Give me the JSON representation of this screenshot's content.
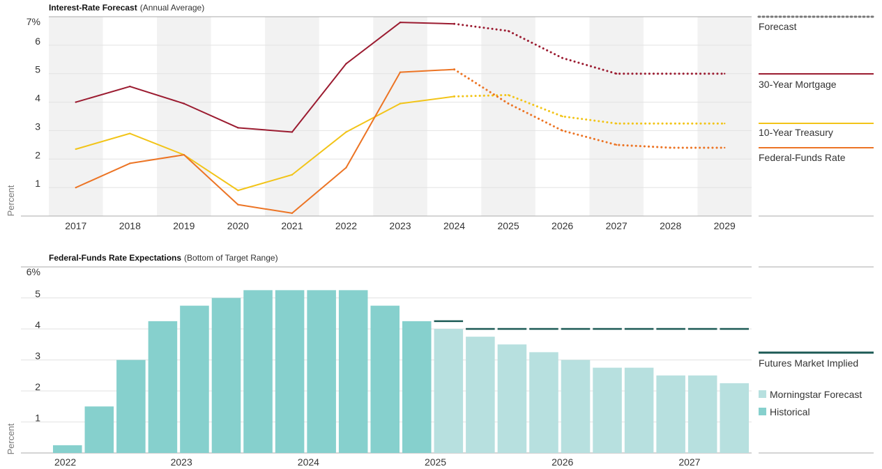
{
  "colors": {
    "mortgage": "#9b1b30",
    "treasury": "#f2c418",
    "fedfunds": "#ec7424",
    "forecast_dots": "#777777",
    "hist_bar": "#86d0cd",
    "forecast_bar": "#b7e0df",
    "futures": "#1c5a55",
    "band": "#f2f2f2",
    "grid": "#e2e2e2",
    "axis": "#aaaaaa"
  },
  "chart_data": [
    {
      "type": "line",
      "title": "Interest-Rate Forecast",
      "subtitle": "(Annual Average)",
      "ylabel": "Percent",
      "ylim": [
        0,
        7
      ],
      "yticks": [
        1,
        2,
        3,
        4,
        5,
        6,
        7
      ],
      "ytick_labels": [
        "1",
        "2",
        "3",
        "4",
        "5",
        "6",
        "7%"
      ],
      "x": [
        "2017",
        "2018",
        "2019",
        "2020",
        "2021",
        "2022",
        "2023",
        "2024",
        "2025",
        "2026",
        "2027",
        "2028",
        "2029"
      ],
      "forecast_starts_at": "2024",
      "series": [
        {
          "name": "30-Year Mortgage",
          "key": "mortgage",
          "values": [
            4.0,
            4.55,
            3.95,
            3.1,
            2.95,
            5.35,
            6.8,
            6.75,
            6.5,
            5.55,
            5.0,
            5.0,
            5.0
          ]
        },
        {
          "name": "10-Year Treasury",
          "key": "treasury",
          "values": [
            2.35,
            2.9,
            2.15,
            0.9,
            1.45,
            2.95,
            3.95,
            4.2,
            4.25,
            3.5,
            3.25,
            3.25,
            3.25
          ]
        },
        {
          "name": "Federal-Funds Rate",
          "key": "fedfunds",
          "values": [
            1.0,
            1.85,
            2.15,
            0.4,
            0.1,
            1.7,
            5.05,
            5.15,
            3.95,
            3.0,
            2.5,
            2.4,
            2.4
          ]
        }
      ],
      "legend": {
        "forecast_label": "Forecast"
      }
    },
    {
      "type": "bar",
      "title": "Federal-Funds Rate Expectations",
      "subtitle": "(Bottom of Target Range)",
      "ylabel": "Percent",
      "ylim": [
        0,
        6
      ],
      "yticks": [
        1,
        2,
        3,
        4,
        5,
        6
      ],
      "ytick_labels": [
        "1",
        "2",
        "3",
        "4",
        "5",
        "6%"
      ],
      "x_labels": [
        {
          "label": "2022",
          "index": 0
        },
        {
          "label": "2023",
          "index": 4
        },
        {
          "label": "2024",
          "index": 8
        },
        {
          "label": "2025",
          "index": 12
        },
        {
          "label": "2026",
          "index": 16
        },
        {
          "label": "2027",
          "index": 20
        }
      ],
      "values": [
        0.25,
        1.5,
        3.0,
        4.25,
        4.75,
        5.0,
        5.25,
        5.25,
        5.25,
        5.25,
        4.75,
        4.25,
        4.0,
        3.75,
        3.5,
        3.25,
        3.0,
        2.75,
        2.75,
        2.5,
        2.5,
        2.25
      ],
      "historical_count": 12,
      "futures": [
        {
          "index": 12,
          "value": 4.25
        },
        {
          "index": 13,
          "value": 4.0
        },
        {
          "index": 14,
          "value": 4.0
        },
        {
          "index": 15,
          "value": 4.0
        },
        {
          "index": 16,
          "value": 4.0
        },
        {
          "index": 17,
          "value": 4.0
        },
        {
          "index": 18,
          "value": 4.0
        },
        {
          "index": 19,
          "value": 4.0
        },
        {
          "index": 20,
          "value": 4.0
        },
        {
          "index": 21,
          "value": 4.0
        }
      ],
      "legend": {
        "futures": "Futures Market Implied",
        "forecast": "Morningstar Forecast",
        "historical": "Historical"
      }
    }
  ]
}
